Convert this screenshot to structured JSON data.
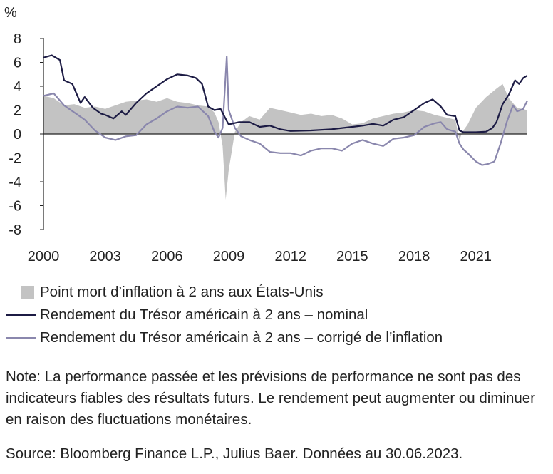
{
  "chart_data": {
    "type": "line",
    "unit_label": "%",
    "ylim": [
      -8,
      8
    ],
    "yticks": [
      8,
      6,
      4,
      2,
      0,
      -2,
      -4,
      -6,
      -8
    ],
    "x_range": [
      2000.0,
      2023.5
    ],
    "xticks": [
      "2000",
      "2003",
      "2006",
      "2009",
      "2012",
      "2015",
      "2018",
      "2021"
    ],
    "colors": {
      "area": "#c3c3c3",
      "nominal": "#1c1b44",
      "real": "#8a87ad"
    },
    "series": [
      {
        "name": "Point mort d’inflation à 2 ans aux États-Unis",
        "kind": "area",
        "x": [
          2000.0,
          2000.5,
          2001.0,
          2001.5,
          2002.0,
          2002.5,
          2003.0,
          2003.5,
          2004.0,
          2004.5,
          2005.0,
          2005.5,
          2006.0,
          2006.5,
          2007.0,
          2007.5,
          2008.0,
          2008.3,
          2008.5,
          2008.7,
          2008.85,
          2009.0,
          2009.3,
          2009.6,
          2010.0,
          2010.5,
          2011.0,
          2011.5,
          2012.0,
          2012.5,
          2013.0,
          2013.5,
          2014.0,
          2014.5,
          2015.0,
          2015.5,
          2016.0,
          2016.5,
          2017.0,
          2017.5,
          2018.0,
          2018.5,
          2019.0,
          2019.5,
          2020.0,
          2020.2,
          2020.35,
          2020.6,
          2021.0,
          2021.5,
          2022.0,
          2022.3,
          2022.6,
          2023.0,
          2023.5
        ],
        "values": [
          3.2,
          3.0,
          2.4,
          2.5,
          2.2,
          2.3,
          2.1,
          2.4,
          2.7,
          2.8,
          2.9,
          2.7,
          3.0,
          2.7,
          2.6,
          2.4,
          2.3,
          1.8,
          1.0,
          -1.0,
          -5.5,
          -3.0,
          0.2,
          1.0,
          1.5,
          1.2,
          2.2,
          2.0,
          1.8,
          1.6,
          1.7,
          1.5,
          1.6,
          1.3,
          0.8,
          0.9,
          1.3,
          1.5,
          1.7,
          1.8,
          2.0,
          1.9,
          1.6,
          1.4,
          1.2,
          -0.5,
          0.2,
          0.8,
          2.2,
          3.1,
          3.8,
          4.2,
          3.0,
          2.2,
          2.0
        ]
      },
      {
        "name": "Rendement du Trésor américain à 2 ans – nominal",
        "kind": "line",
        "x": [
          2000.0,
          2000.4,
          2000.8,
          2001.0,
          2001.4,
          2001.8,
          2002.0,
          2002.4,
          2002.8,
          2003.0,
          2003.4,
          2003.8,
          2004.0,
          2004.5,
          2005.0,
          2005.5,
          2006.0,
          2006.5,
          2007.0,
          2007.4,
          2007.7,
          2008.0,
          2008.3,
          2008.6,
          2008.9,
          2009.0,
          2009.5,
          2010.0,
          2010.5,
          2011.0,
          2011.5,
          2012.0,
          2013.0,
          2014.0,
          2014.5,
          2015.0,
          2015.5,
          2016.0,
          2016.5,
          2017.0,
          2017.5,
          2018.0,
          2018.5,
          2018.9,
          2019.3,
          2019.6,
          2020.0,
          2020.2,
          2020.4,
          2021.0,
          2021.5,
          2021.8,
          2022.0,
          2022.3,
          2022.6,
          2022.9,
          2023.1,
          2023.3,
          2023.5
        ],
        "values": [
          6.4,
          6.6,
          6.2,
          4.5,
          4.2,
          2.6,
          3.1,
          2.2,
          1.7,
          1.6,
          1.3,
          1.9,
          1.6,
          2.6,
          3.4,
          4.0,
          4.6,
          5.0,
          4.9,
          4.7,
          4.2,
          2.3,
          2.0,
          2.1,
          1.1,
          0.8,
          1.0,
          1.0,
          0.6,
          0.7,
          0.4,
          0.25,
          0.3,
          0.4,
          0.5,
          0.6,
          0.7,
          0.85,
          0.7,
          1.2,
          1.4,
          2.0,
          2.6,
          2.9,
          2.3,
          1.6,
          1.5,
          0.3,
          0.15,
          0.15,
          0.2,
          0.5,
          1.0,
          2.5,
          3.3,
          4.5,
          4.2,
          4.7,
          4.9
        ]
      },
      {
        "name": "Rendement du Trésor américain à 2 ans – corrigé de l’inflation",
        "kind": "line",
        "x": [
          2000.0,
          2000.5,
          2001.0,
          2001.5,
          2002.0,
          2002.5,
          2003.0,
          2003.5,
          2004.0,
          2004.5,
          2005.0,
          2005.5,
          2006.0,
          2006.5,
          2007.0,
          2007.5,
          2008.0,
          2008.3,
          2008.5,
          2008.7,
          2008.9,
          2009.0,
          2009.3,
          2009.6,
          2010.0,
          2010.5,
          2011.0,
          2011.5,
          2012.0,
          2012.5,
          2013.0,
          2013.5,
          2014.0,
          2014.5,
          2015.0,
          2015.5,
          2016.0,
          2016.5,
          2017.0,
          2017.5,
          2018.0,
          2018.5,
          2019.0,
          2019.3,
          2019.6,
          2020.0,
          2020.2,
          2020.4,
          2020.6,
          2021.0,
          2021.3,
          2021.6,
          2021.9,
          2022.2,
          2022.5,
          2022.8,
          2023.0,
          2023.3,
          2023.5
        ],
        "values": [
          3.2,
          3.4,
          2.4,
          1.8,
          1.2,
          0.3,
          -0.3,
          -0.5,
          -0.2,
          -0.1,
          0.8,
          1.3,
          1.9,
          2.3,
          2.2,
          2.3,
          1.5,
          0.2,
          -0.3,
          0.5,
          6.5,
          2.0,
          0.5,
          -0.2,
          -0.5,
          -0.8,
          -1.5,
          -1.6,
          -1.6,
          -1.8,
          -1.4,
          -1.2,
          -1.2,
          -1.4,
          -0.8,
          -0.5,
          -0.8,
          -1.0,
          -0.4,
          -0.3,
          -0.1,
          0.6,
          0.9,
          1.0,
          0.4,
          0.2,
          -0.8,
          -1.3,
          -1.6,
          -2.3,
          -2.6,
          -2.5,
          -2.3,
          -0.8,
          1.0,
          2.4,
          1.9,
          2.1,
          2.8
        ]
      }
    ]
  },
  "legend": [
    "Point mort d’inflation à 2 ans aux États-Unis",
    "Rendement du Trésor américain à 2 ans – nominal",
    "Rendement du Trésor américain à 2 ans – corrigé de l’inflation"
  ],
  "note": "Note: La performance passée et les prévisions de performance ne sont pas des indicateurs fiables des résultats futurs. Le rendement peut augmenter ou diminuer en raison des fluctuations monétaires.",
  "source": "Source: Bloomberg Finance L.P., Julius Baer. Données au 30.06.2023."
}
